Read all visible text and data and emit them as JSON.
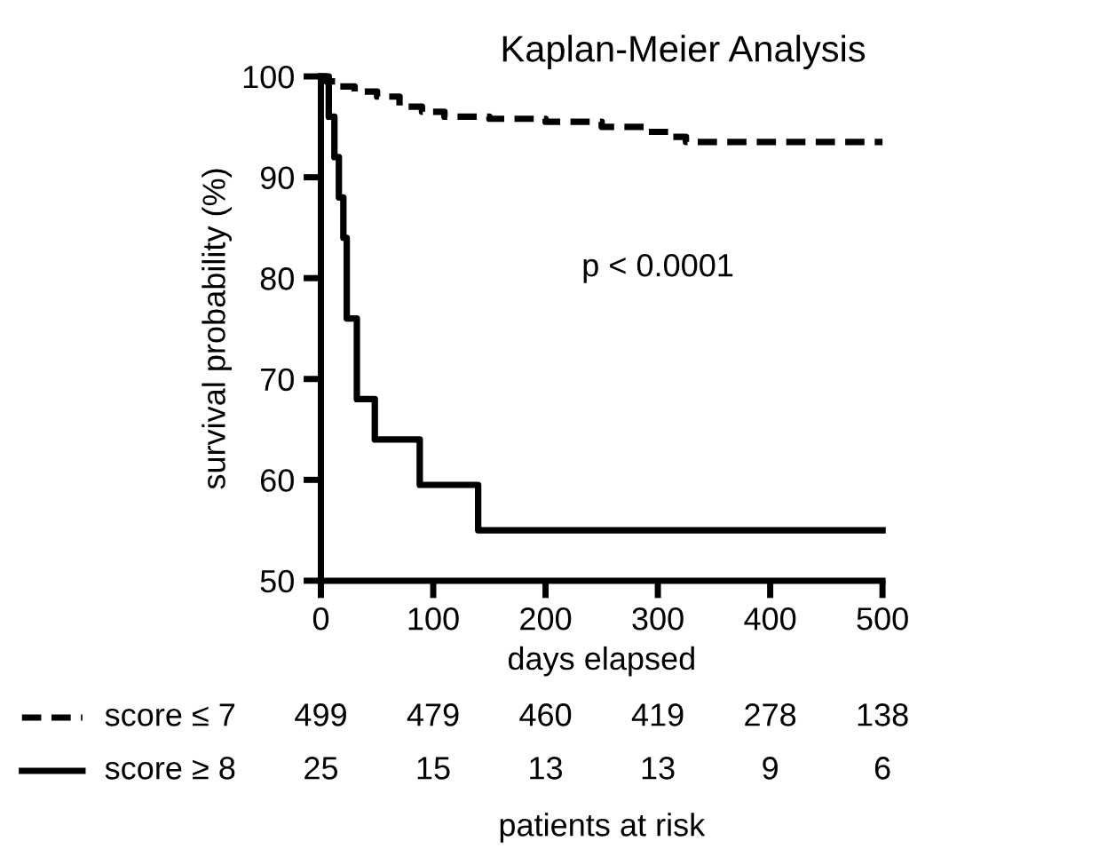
{
  "chart_data": {
    "type": "step",
    "title": "Kaplan-Meier Analysis",
    "xlabel": "days elapsed",
    "ylabel": "survival probability (%)",
    "xlim": [
      0,
      500
    ],
    "xticks": [
      0,
      100,
      200,
      300,
      400,
      500
    ],
    "ylim": [
      50,
      100
    ],
    "yticks": [
      50,
      60,
      70,
      80,
      90,
      100
    ],
    "grid": false,
    "legend": "bottom left",
    "marker": "none",
    "series": [
      {
        "name": "score ≤ 7",
        "color": "#000000",
        "line_style": "dashed",
        "x": [
          0,
          5,
          15,
          30,
          50,
          70,
          90,
          110,
          150,
          200,
          250,
          290,
          310,
          325,
          500
        ],
        "values": [
          100,
          99.5,
          99,
          98.5,
          98,
          97,
          96.5,
          96,
          95.8,
          95.5,
          95,
          94.5,
          94,
          93.5,
          93.5
        ]
      },
      {
        "name": "score ≥ 8",
        "color": "#000000",
        "line_style": "solid",
        "x": [
          0,
          7,
          12,
          16,
          20,
          23,
          32,
          48,
          88,
          140,
          500
        ],
        "values": [
          100,
          96,
          92,
          88,
          84,
          76,
          68,
          64,
          59.5,
          55,
          55
        ]
      }
    ],
    "annotations": [
      "p < 0.0001",
      "499",
      "479",
      "460",
      "419",
      "278",
      "138",
      "25",
      "15",
      "13",
      "13",
      "9",
      "6",
      "patients at risk"
    ]
  }
}
